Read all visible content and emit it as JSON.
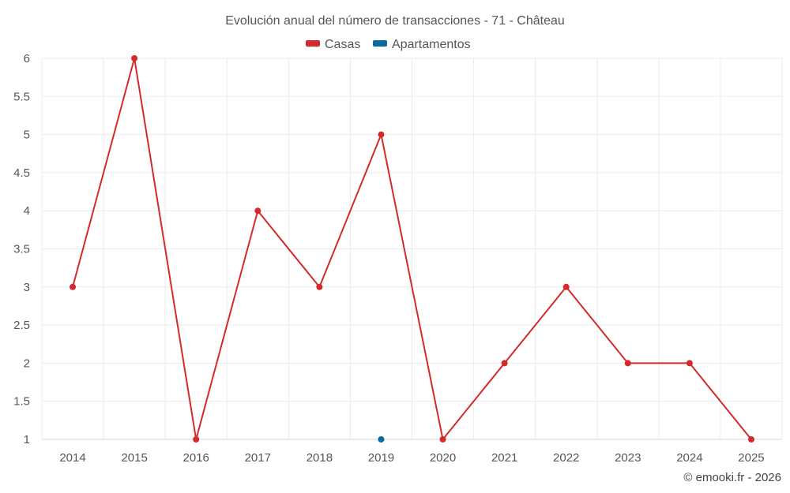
{
  "chart_data": {
    "type": "line",
    "title": "Evolución anual del número de transacciones - 71 - Château",
    "categories": [
      "2014",
      "2015",
      "2016",
      "2017",
      "2018",
      "2019",
      "2020",
      "2021",
      "2022",
      "2023",
      "2024",
      "2025"
    ],
    "series": [
      {
        "name": "Casas",
        "color": "#d42a2a",
        "values": [
          3,
          6,
          1,
          4,
          3,
          5,
          1,
          2,
          3,
          2,
          2,
          1
        ]
      },
      {
        "name": "Apartamentos",
        "color": "#0b6aa2",
        "values": [
          null,
          null,
          null,
          null,
          null,
          1,
          null,
          null,
          null,
          null,
          null,
          null
        ]
      }
    ],
    "ylim": [
      1,
      6
    ],
    "yticks": [
      "1",
      "1.5",
      "2",
      "2.5",
      "3",
      "3.5",
      "4",
      "4.5",
      "5",
      "5.5",
      "6"
    ],
    "grid": true,
    "legend_position": "top-center",
    "xlabel": "",
    "ylabel": ""
  },
  "credit": "© emooki.fr - 2026"
}
